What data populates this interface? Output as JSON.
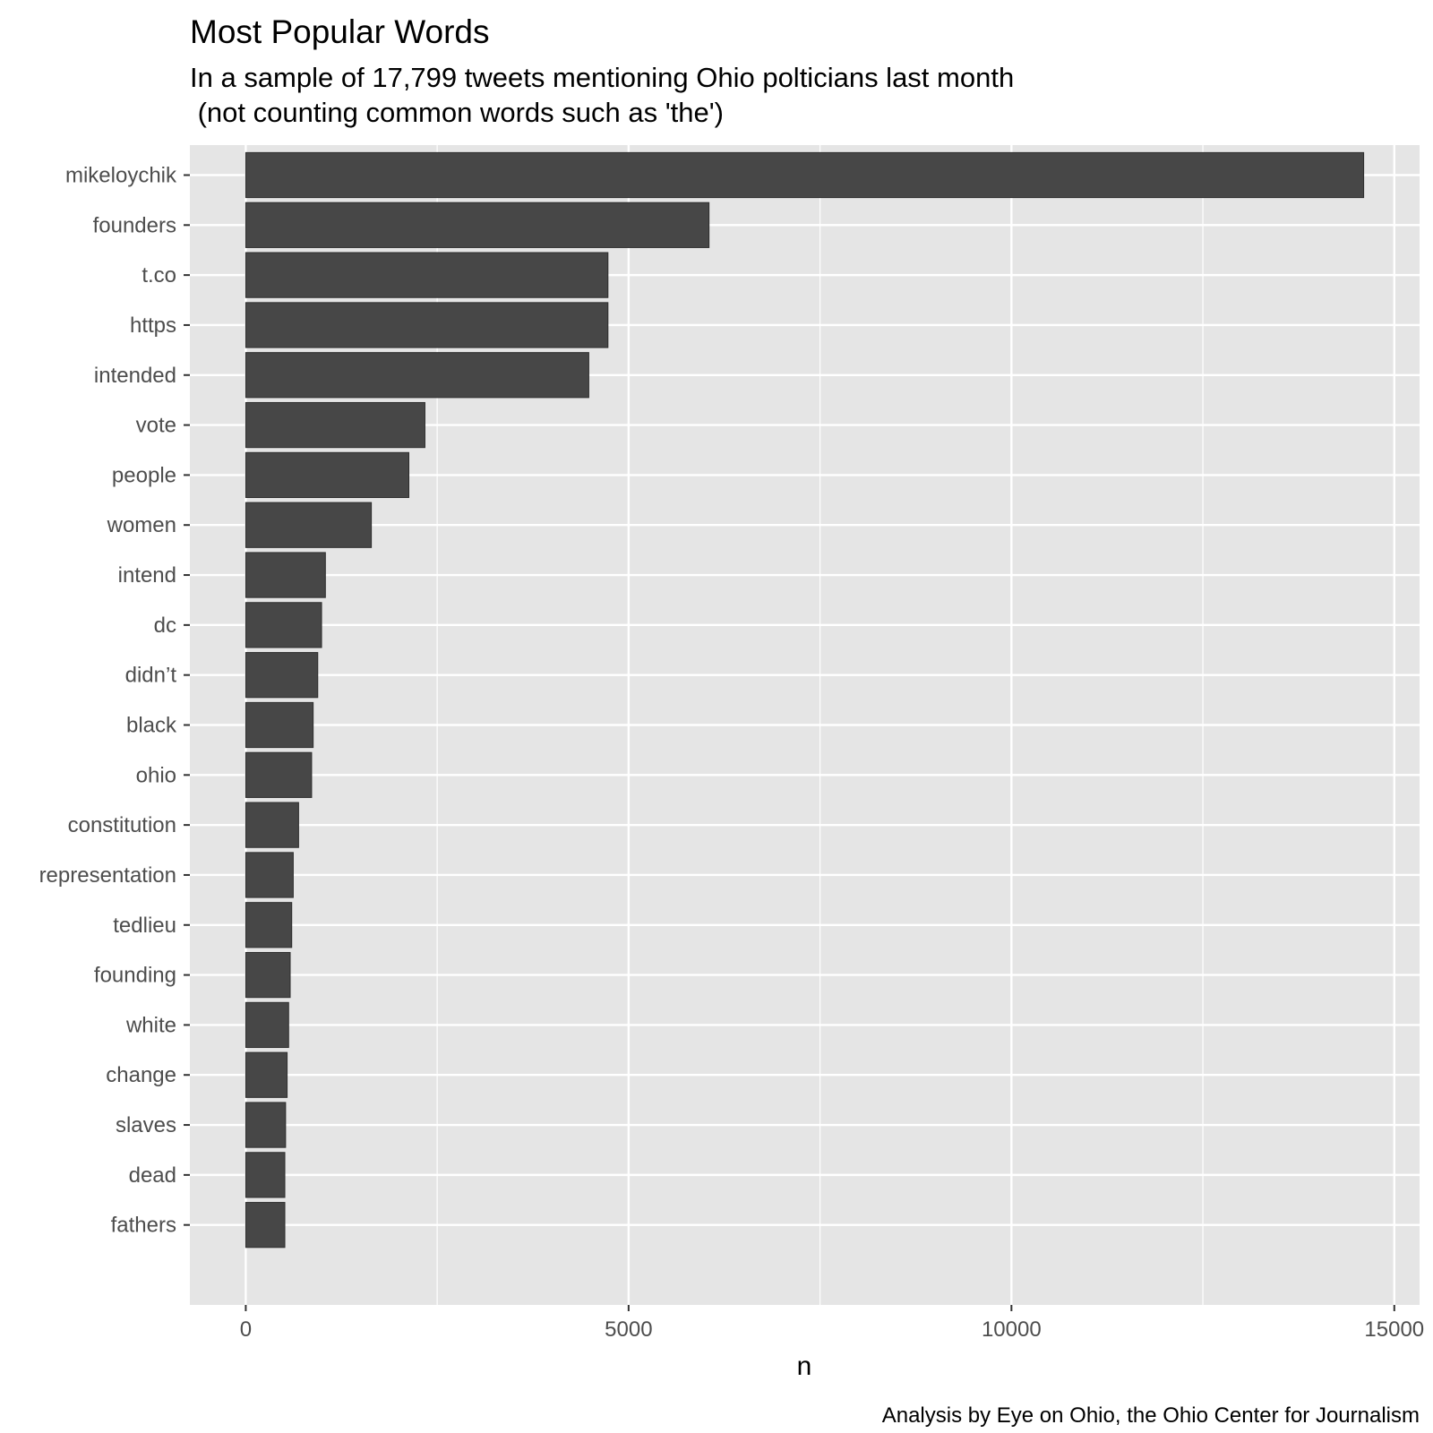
{
  "chart_data": {
    "type": "bar",
    "orientation": "horizontal",
    "title": "Most Popular Words",
    "subtitle_lines": [
      "In a sample of 17,799 tweets mentioning Ohio polticians last month",
      " (not counting common words such as 'the')"
    ],
    "xlabel": "n",
    "ylabel": "",
    "caption": "Analysis by Eye on Ohio, the Ohio Center for Journalism",
    "xlim": [
      -730,
      15330
    ],
    "xticks": [
      0,
      5000,
      10000,
      15000
    ],
    "xtick_labels": [
      "0",
      "5000",
      "10000",
      "15000"
    ],
    "grid": true,
    "bar_color": "#474747",
    "panel_color": "#e5e5e5",
    "categories": [
      "mikeloychik",
      "founders",
      "t.co",
      "https",
      "intended",
      "vote",
      "people",
      "women",
      "intend",
      "dc",
      "didn’t",
      "black",
      "ohio",
      "constitution",
      "representation",
      "tedlieu",
      "founding",
      "white",
      "change",
      "slaves",
      "dead",
      "fathers"
    ],
    "values": [
      14600,
      6050,
      4730,
      4730,
      4480,
      2340,
      2130,
      1640,
      1040,
      990,
      940,
      880,
      860,
      690,
      620,
      600,
      580,
      560,
      540,
      520,
      510,
      510
    ]
  }
}
